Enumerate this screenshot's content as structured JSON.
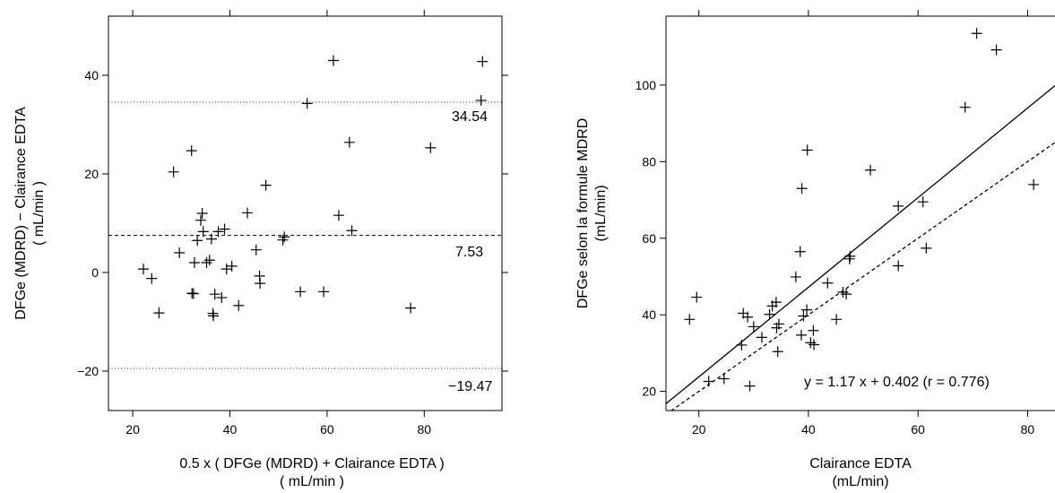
{
  "chart_data": [
    {
      "type": "scatter",
      "title": "",
      "xlabel": "0.5 x ( DFGe (MDRD)  +  Clairance EDTA )",
      "xlabel_unit": "( mL/min )",
      "ylabel": "DFGe (MDRD)  − Clairance EDTA",
      "ylabel_unit": "( mL/min )",
      "xlim": [
        15,
        96
      ],
      "ylim": [
        -28,
        52
      ],
      "xticks": [
        20,
        40,
        60,
        80
      ],
      "yticks": [
        -20,
        0,
        20,
        40
      ],
      "marker": "plus",
      "grid": false,
      "legend": "none",
      "hlines": [
        {
          "y": 34.54,
          "style": "dotted",
          "label": "34.54"
        },
        {
          "y": 7.53,
          "style": "dashed",
          "label": "7.53"
        },
        {
          "y": -19.47,
          "style": "dotted",
          "label": "−19.47"
        }
      ],
      "points": [
        {
          "x": 22.2,
          "y": 0.7
        },
        {
          "x": 23.9,
          "y": -1.2
        },
        {
          "x": 25.4,
          "y": -8.2
        },
        {
          "x": 28.4,
          "y": 20.4
        },
        {
          "x": 29.6,
          "y": 4.0
        },
        {
          "x": 32.1,
          "y": 24.7
        },
        {
          "x": 32.2,
          "y": -4.2
        },
        {
          "x": 32.5,
          "y": -4.3
        },
        {
          "x": 32.7,
          "y": 2.0
        },
        {
          "x": 33.3,
          "y": 6.5
        },
        {
          "x": 34.0,
          "y": 10.6
        },
        {
          "x": 34.3,
          "y": 12.0
        },
        {
          "x": 34.5,
          "y": 8.3
        },
        {
          "x": 35.2,
          "y": 2.0
        },
        {
          "x": 35.8,
          "y": 2.5
        },
        {
          "x": 36.2,
          "y": 6.8
        },
        {
          "x": 36.5,
          "y": -8.3
        },
        {
          "x": 36.6,
          "y": -8.8
        },
        {
          "x": 36.9,
          "y": -4.4
        },
        {
          "x": 37.6,
          "y": 8.3
        },
        {
          "x": 38.3,
          "y": -5.1
        },
        {
          "x": 38.9,
          "y": 8.8
        },
        {
          "x": 39.3,
          "y": 0.7
        },
        {
          "x": 40.4,
          "y": 1.3
        },
        {
          "x": 41.8,
          "y": -6.7
        },
        {
          "x": 43.6,
          "y": 12.1
        },
        {
          "x": 45.4,
          "y": 4.6
        },
        {
          "x": 46.1,
          "y": -0.7
        },
        {
          "x": 46.2,
          "y": -2.2
        },
        {
          "x": 47.4,
          "y": 17.7
        },
        {
          "x": 50.9,
          "y": 6.6
        },
        {
          "x": 51.2,
          "y": 7.2
        },
        {
          "x": 54.5,
          "y": -3.9
        },
        {
          "x": 55.9,
          "y": 34.3
        },
        {
          "x": 59.3,
          "y": -3.9
        },
        {
          "x": 61.3,
          "y": 43.0
        },
        {
          "x": 62.4,
          "y": 11.6
        },
        {
          "x": 64.6,
          "y": 26.4
        },
        {
          "x": 65.1,
          "y": 8.5
        },
        {
          "x": 77.2,
          "y": -7.2
        },
        {
          "x": 81.3,
          "y": 25.3
        },
        {
          "x": 91.7,
          "y": 34.9
        },
        {
          "x": 92.0,
          "y": 42.8
        }
      ]
    },
    {
      "type": "scatter",
      "title": "",
      "xlabel": "Clairance EDTA",
      "xlabel_unit": "(mL/min)",
      "ylabel": "DFGe selon la formule MDRD",
      "ylabel_unit": "(mL/min)",
      "xlim": [
        14,
        85
      ],
      "ylim": [
        15,
        118
      ],
      "xticks": [
        20,
        40,
        60,
        80
      ],
      "yticks": [
        20,
        40,
        60,
        80,
        100
      ],
      "marker": "plus",
      "grid": false,
      "legend": "none",
      "regression": {
        "slope": 1.17,
        "intercept": 0.402,
        "r": 0.776,
        "style": "solid"
      },
      "identity_line": {
        "slope": 1,
        "intercept": 0,
        "style": "dashed"
      },
      "annotation": "y = 1.17 x + 0.402 (r = 0.776)",
      "points": [
        {
          "x": 18.3,
          "y": 38.8
        },
        {
          "x": 19.6,
          "y": 44.6
        },
        {
          "x": 21.8,
          "y": 22.6
        },
        {
          "x": 24.6,
          "y": 23.3
        },
        {
          "x": 27.8,
          "y": 32.1
        },
        {
          "x": 28.1,
          "y": 40.4
        },
        {
          "x": 28.9,
          "y": 39.4
        },
        {
          "x": 29.3,
          "y": 21.4
        },
        {
          "x": 30.0,
          "y": 36.9
        },
        {
          "x": 31.5,
          "y": 34.1
        },
        {
          "x": 32.9,
          "y": 40.1
        },
        {
          "x": 33.4,
          "y": 42.3
        },
        {
          "x": 34.1,
          "y": 43.3
        },
        {
          "x": 34.2,
          "y": 36.6
        },
        {
          "x": 34.4,
          "y": 30.4
        },
        {
          "x": 34.6,
          "y": 37.6
        },
        {
          "x": 37.7,
          "y": 49.9
        },
        {
          "x": 38.5,
          "y": 56.5
        },
        {
          "x": 38.7,
          "y": 34.7
        },
        {
          "x": 38.8,
          "y": 73.0
        },
        {
          "x": 39.1,
          "y": 39.7
        },
        {
          "x": 39.7,
          "y": 41.3
        },
        {
          "x": 39.8,
          "y": 83.0
        },
        {
          "x": 40.4,
          "y": 32.7
        },
        {
          "x": 40.9,
          "y": 35.9
        },
        {
          "x": 41.0,
          "y": 32.2
        },
        {
          "x": 43.5,
          "y": 48.3
        },
        {
          "x": 45.1,
          "y": 38.8
        },
        {
          "x": 46.3,
          "y": 45.9
        },
        {
          "x": 46.9,
          "y": 45.4
        },
        {
          "x": 47.5,
          "y": 54.6
        },
        {
          "x": 47.6,
          "y": 55.3
        },
        {
          "x": 51.3,
          "y": 77.8
        },
        {
          "x": 56.4,
          "y": 68.4
        },
        {
          "x": 56.4,
          "y": 52.8
        },
        {
          "x": 60.9,
          "y": 69.5
        },
        {
          "x": 61.5,
          "y": 57.4
        },
        {
          "x": 68.6,
          "y": 94.2
        },
        {
          "x": 70.7,
          "y": 113.5
        },
        {
          "x": 74.3,
          "y": 109.2
        },
        {
          "x": 81.1,
          "y": 74.0
        }
      ]
    }
  ]
}
